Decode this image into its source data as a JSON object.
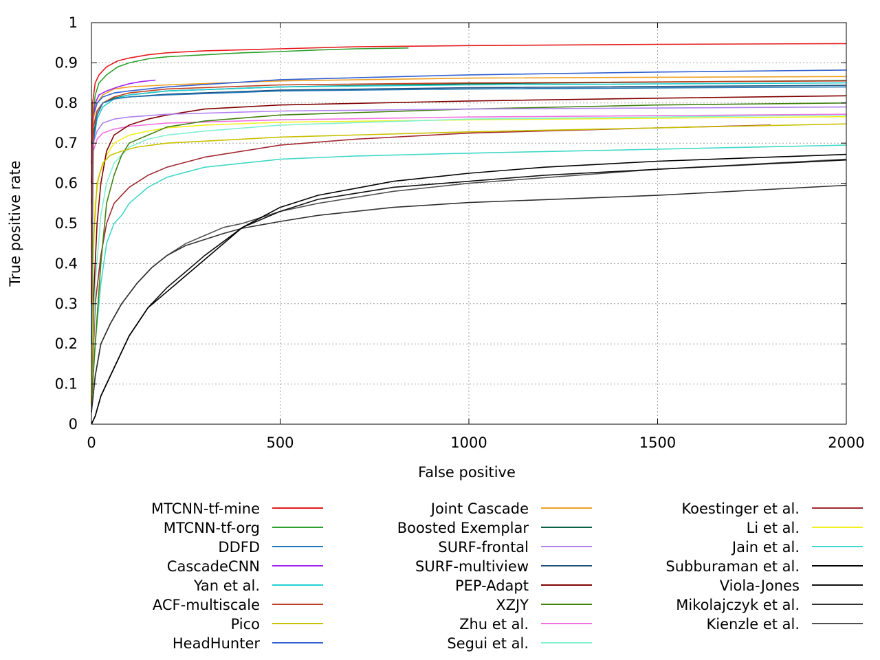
{
  "chart_data": {
    "type": "line",
    "title": "",
    "xlabel": "False positive",
    "ylabel": "True positive rate",
    "xlim": [
      0,
      2000
    ],
    "ylim": [
      0,
      1
    ],
    "x_ticks": [
      "0",
      "500",
      "1000",
      "1500",
      "2000"
    ],
    "y_ticks": [
      "0",
      "0.1",
      "0.2",
      "0.3",
      "0.4",
      "0.5",
      "0.6",
      "0.7",
      "0.8",
      "0.9",
      "1"
    ],
    "grid": true,
    "legend_position": "bottom",
    "series": [
      {
        "name": "MTCNN-tf-mine",
        "color": "#e41a1c",
        "x": [
          0,
          3,
          10,
          20,
          40,
          70,
          100,
          150,
          200,
          300,
          500,
          700,
          1000,
          1500,
          2000
        ],
        "y": [
          0.3,
          0.8,
          0.85,
          0.87,
          0.89,
          0.905,
          0.912,
          0.92,
          0.925,
          0.93,
          0.935,
          0.94,
          0.943,
          0.946,
          0.948
        ]
      },
      {
        "name": "MTCNN-tf-org",
        "color": "#2ca02c",
        "x": [
          0,
          3,
          10,
          20,
          40,
          70,
          100,
          150,
          200,
          300,
          400,
          500,
          600,
          700,
          840
        ],
        "y": [
          0.3,
          0.76,
          0.82,
          0.85,
          0.87,
          0.89,
          0.9,
          0.91,
          0.915,
          0.92,
          0.925,
          0.928,
          0.932,
          0.935,
          0.937
        ]
      },
      {
        "name": "DDFD",
        "color": "#1f77b4",
        "x": [
          0,
          5,
          15,
          30,
          60,
          100,
          200,
          500,
          1000,
          2000
        ],
        "y": [
          0.2,
          0.7,
          0.77,
          0.8,
          0.81,
          0.815,
          0.82,
          0.83,
          0.835,
          0.84
        ]
      },
      {
        "name": "CascadeCNN",
        "color": "#a020f0",
        "x": [
          0,
          3,
          10,
          20,
          40,
          70,
          100,
          130,
          170
        ],
        "y": [
          0.6,
          0.76,
          0.8,
          0.82,
          0.83,
          0.84,
          0.848,
          0.853,
          0.857
        ]
      },
      {
        "name": "Yan et al.",
        "color": "#20d0d0",
        "x": [
          0,
          5,
          15,
          30,
          60,
          100,
          200,
          500,
          1000,
          2000
        ],
        "y": [
          0.55,
          0.7,
          0.76,
          0.79,
          0.81,
          0.82,
          0.83,
          0.84,
          0.845,
          0.85
        ]
      },
      {
        "name": "ACF-multiscale",
        "color": "#c04020",
        "x": [
          0,
          5,
          15,
          30,
          60,
          100,
          200,
          500,
          1000,
          2000
        ],
        "y": [
          0.6,
          0.74,
          0.78,
          0.8,
          0.815,
          0.825,
          0.835,
          0.845,
          0.85,
          0.855
        ]
      },
      {
        "name": "Pico",
        "color": "#c8c000",
        "x": [
          0,
          5,
          15,
          30,
          50,
          80,
          120,
          200,
          300,
          500,
          1000,
          1500,
          2000
        ],
        "y": [
          0.05,
          0.45,
          0.6,
          0.65,
          0.67,
          0.68,
          0.69,
          0.7,
          0.705,
          0.715,
          0.728,
          0.738,
          0.748
        ]
      },
      {
        "name": "HeadHunter",
        "color": "#3060d0",
        "x": [
          0,
          5,
          15,
          30,
          60,
          100,
          200,
          500,
          1000,
          1500,
          2000
        ],
        "y": [
          0.7,
          0.77,
          0.8,
          0.815,
          0.825,
          0.83,
          0.84,
          0.858,
          0.87,
          0.877,
          0.882
        ]
      },
      {
        "name": "Joint Cascade",
        "color": "#f0a020",
        "x": [
          0,
          5,
          15,
          30,
          60,
          100,
          200,
          500,
          1000,
          2000
        ],
        "y": [
          0.65,
          0.76,
          0.8,
          0.82,
          0.835,
          0.84,
          0.845,
          0.855,
          0.862,
          0.866
        ]
      },
      {
        "name": "Boosted Exemplar",
        "color": "#0a6040",
        "x": [
          0,
          5,
          15,
          30,
          60,
          100,
          200,
          500,
          1000,
          2000
        ],
        "y": [
          0.5,
          0.72,
          0.77,
          0.8,
          0.812,
          0.82,
          0.83,
          0.84,
          0.848,
          0.856
        ]
      },
      {
        "name": "SURF-frontal",
        "color": "#b080f0",
        "x": [
          0,
          5,
          15,
          30,
          60,
          100,
          200,
          500,
          1000,
          2000
        ],
        "y": [
          0.6,
          0.7,
          0.73,
          0.75,
          0.76,
          0.765,
          0.772,
          0.78,
          0.785,
          0.79
        ]
      },
      {
        "name": "SURF-multiview",
        "color": "#205080",
        "x": [
          0,
          5,
          15,
          30,
          60,
          100,
          200,
          500,
          1000,
          2000
        ],
        "y": [
          0.65,
          0.74,
          0.78,
          0.8,
          0.81,
          0.815,
          0.822,
          0.832,
          0.838,
          0.844
        ]
      },
      {
        "name": "PEP-Adapt",
        "color": "#800000",
        "x": [
          0,
          5,
          15,
          25,
          40,
          60,
          100,
          150,
          200,
          300,
          500,
          1000,
          1500,
          2000
        ],
        "y": [
          0.05,
          0.3,
          0.5,
          0.6,
          0.68,
          0.72,
          0.745,
          0.76,
          0.77,
          0.785,
          0.795,
          0.805,
          0.812,
          0.818
        ]
      },
      {
        "name": "XZJY",
        "color": "#408010",
        "x": [
          0,
          10,
          25,
          40,
          60,
          80,
          100,
          150,
          200,
          300,
          500,
          1000,
          1500,
          2000
        ],
        "y": [
          0.05,
          0.2,
          0.4,
          0.55,
          0.62,
          0.67,
          0.7,
          0.72,
          0.74,
          0.755,
          0.77,
          0.785,
          0.795,
          0.8
        ]
      },
      {
        "name": "Zhu et al.",
        "color": "#f070e0",
        "x": [
          0,
          5,
          15,
          30,
          60,
          100,
          200,
          500,
          1000,
          2000
        ],
        "y": [
          0.55,
          0.68,
          0.71,
          0.725,
          0.735,
          0.742,
          0.75,
          0.758,
          0.765,
          0.772
        ]
      },
      {
        "name": "Segui et al.",
        "color": "#80f0d0",
        "x": [
          0,
          10,
          25,
          40,
          60,
          100,
          150,
          200,
          300,
          500,
          1000,
          2000
        ],
        "y": [
          0.05,
          0.35,
          0.52,
          0.6,
          0.65,
          0.69,
          0.71,
          0.72,
          0.73,
          0.745,
          0.76,
          0.77
        ]
      },
      {
        "name": "Koestinger et al.",
        "color": "#a02830",
        "x": [
          0,
          10,
          25,
          40,
          60,
          100,
          150,
          200,
          300,
          500,
          700,
          1000,
          1500,
          1800
        ],
        "y": [
          0.05,
          0.3,
          0.42,
          0.5,
          0.55,
          0.59,
          0.62,
          0.64,
          0.665,
          0.695,
          0.71,
          0.725,
          0.738,
          0.745
        ]
      },
      {
        "name": "Li et al.",
        "color": "#f0f020",
        "x": [
          0,
          3,
          10,
          20,
          40,
          60,
          100,
          150,
          200,
          300,
          500,
          1000,
          1500,
          2000
        ],
        "y": [
          0.05,
          0.35,
          0.55,
          0.62,
          0.67,
          0.7,
          0.72,
          0.73,
          0.738,
          0.745,
          0.752,
          0.758,
          0.762,
          0.766
        ]
      },
      {
        "name": "Jain et al.",
        "color": "#40d8c8",
        "x": [
          0,
          10,
          25,
          40,
          60,
          80,
          100,
          150,
          200,
          300,
          500,
          700,
          1000,
          1500,
          2000
        ],
        "y": [
          0.05,
          0.2,
          0.35,
          0.45,
          0.5,
          0.52,
          0.55,
          0.59,
          0.615,
          0.64,
          0.66,
          0.668,
          0.675,
          0.685,
          0.695
        ]
      },
      {
        "name": "Subburaman et al.",
        "color": "#000000",
        "x": [
          0,
          10,
          25,
          50,
          100,
          150,
          200,
          250,
          300,
          400,
          500,
          600,
          800,
          1000,
          1200,
          1500,
          2000
        ],
        "y": [
          0,
          0.02,
          0.07,
          0.12,
          0.22,
          0.29,
          0.33,
          0.37,
          0.41,
          0.49,
          0.54,
          0.57,
          0.605,
          0.625,
          0.64,
          0.655,
          0.672
        ]
      },
      {
        "name": "Viola-Jones",
        "color": "#101010",
        "x": [
          0,
          10,
          25,
          50,
          100,
          150,
          200,
          250,
          300,
          400,
          500,
          600,
          800,
          1000,
          1200,
          1500,
          2000
        ],
        "y": [
          0,
          0.02,
          0.07,
          0.12,
          0.22,
          0.29,
          0.34,
          0.38,
          0.42,
          0.49,
          0.53,
          0.56,
          0.59,
          0.605,
          0.62,
          0.635,
          0.658
        ]
      },
      {
        "name": "Mikolajczyk et al.",
        "color": "#303030",
        "x": [
          0,
          10,
          25,
          50,
          80,
          120,
          160,
          200,
          250,
          300,
          350,
          400,
          500,
          600,
          800,
          1000,
          1500,
          2000
        ],
        "y": [
          0.03,
          0.12,
          0.2,
          0.25,
          0.3,
          0.35,
          0.39,
          0.42,
          0.445,
          0.46,
          0.475,
          0.488,
          0.505,
          0.52,
          0.54,
          0.552,
          0.57,
          0.595
        ]
      },
      {
        "name": "Kienzle et al.",
        "color": "#505050",
        "x": [
          0,
          10,
          25,
          50,
          80,
          120,
          160,
          200,
          250,
          300,
          350,
          400,
          500,
          600,
          800,
          1000,
          1500,
          2000
        ],
        "y": [
          0.03,
          0.12,
          0.2,
          0.25,
          0.3,
          0.35,
          0.39,
          0.42,
          0.45,
          0.47,
          0.49,
          0.5,
          0.53,
          0.55,
          0.58,
          0.6,
          0.635,
          0.66
        ]
      }
    ]
  }
}
